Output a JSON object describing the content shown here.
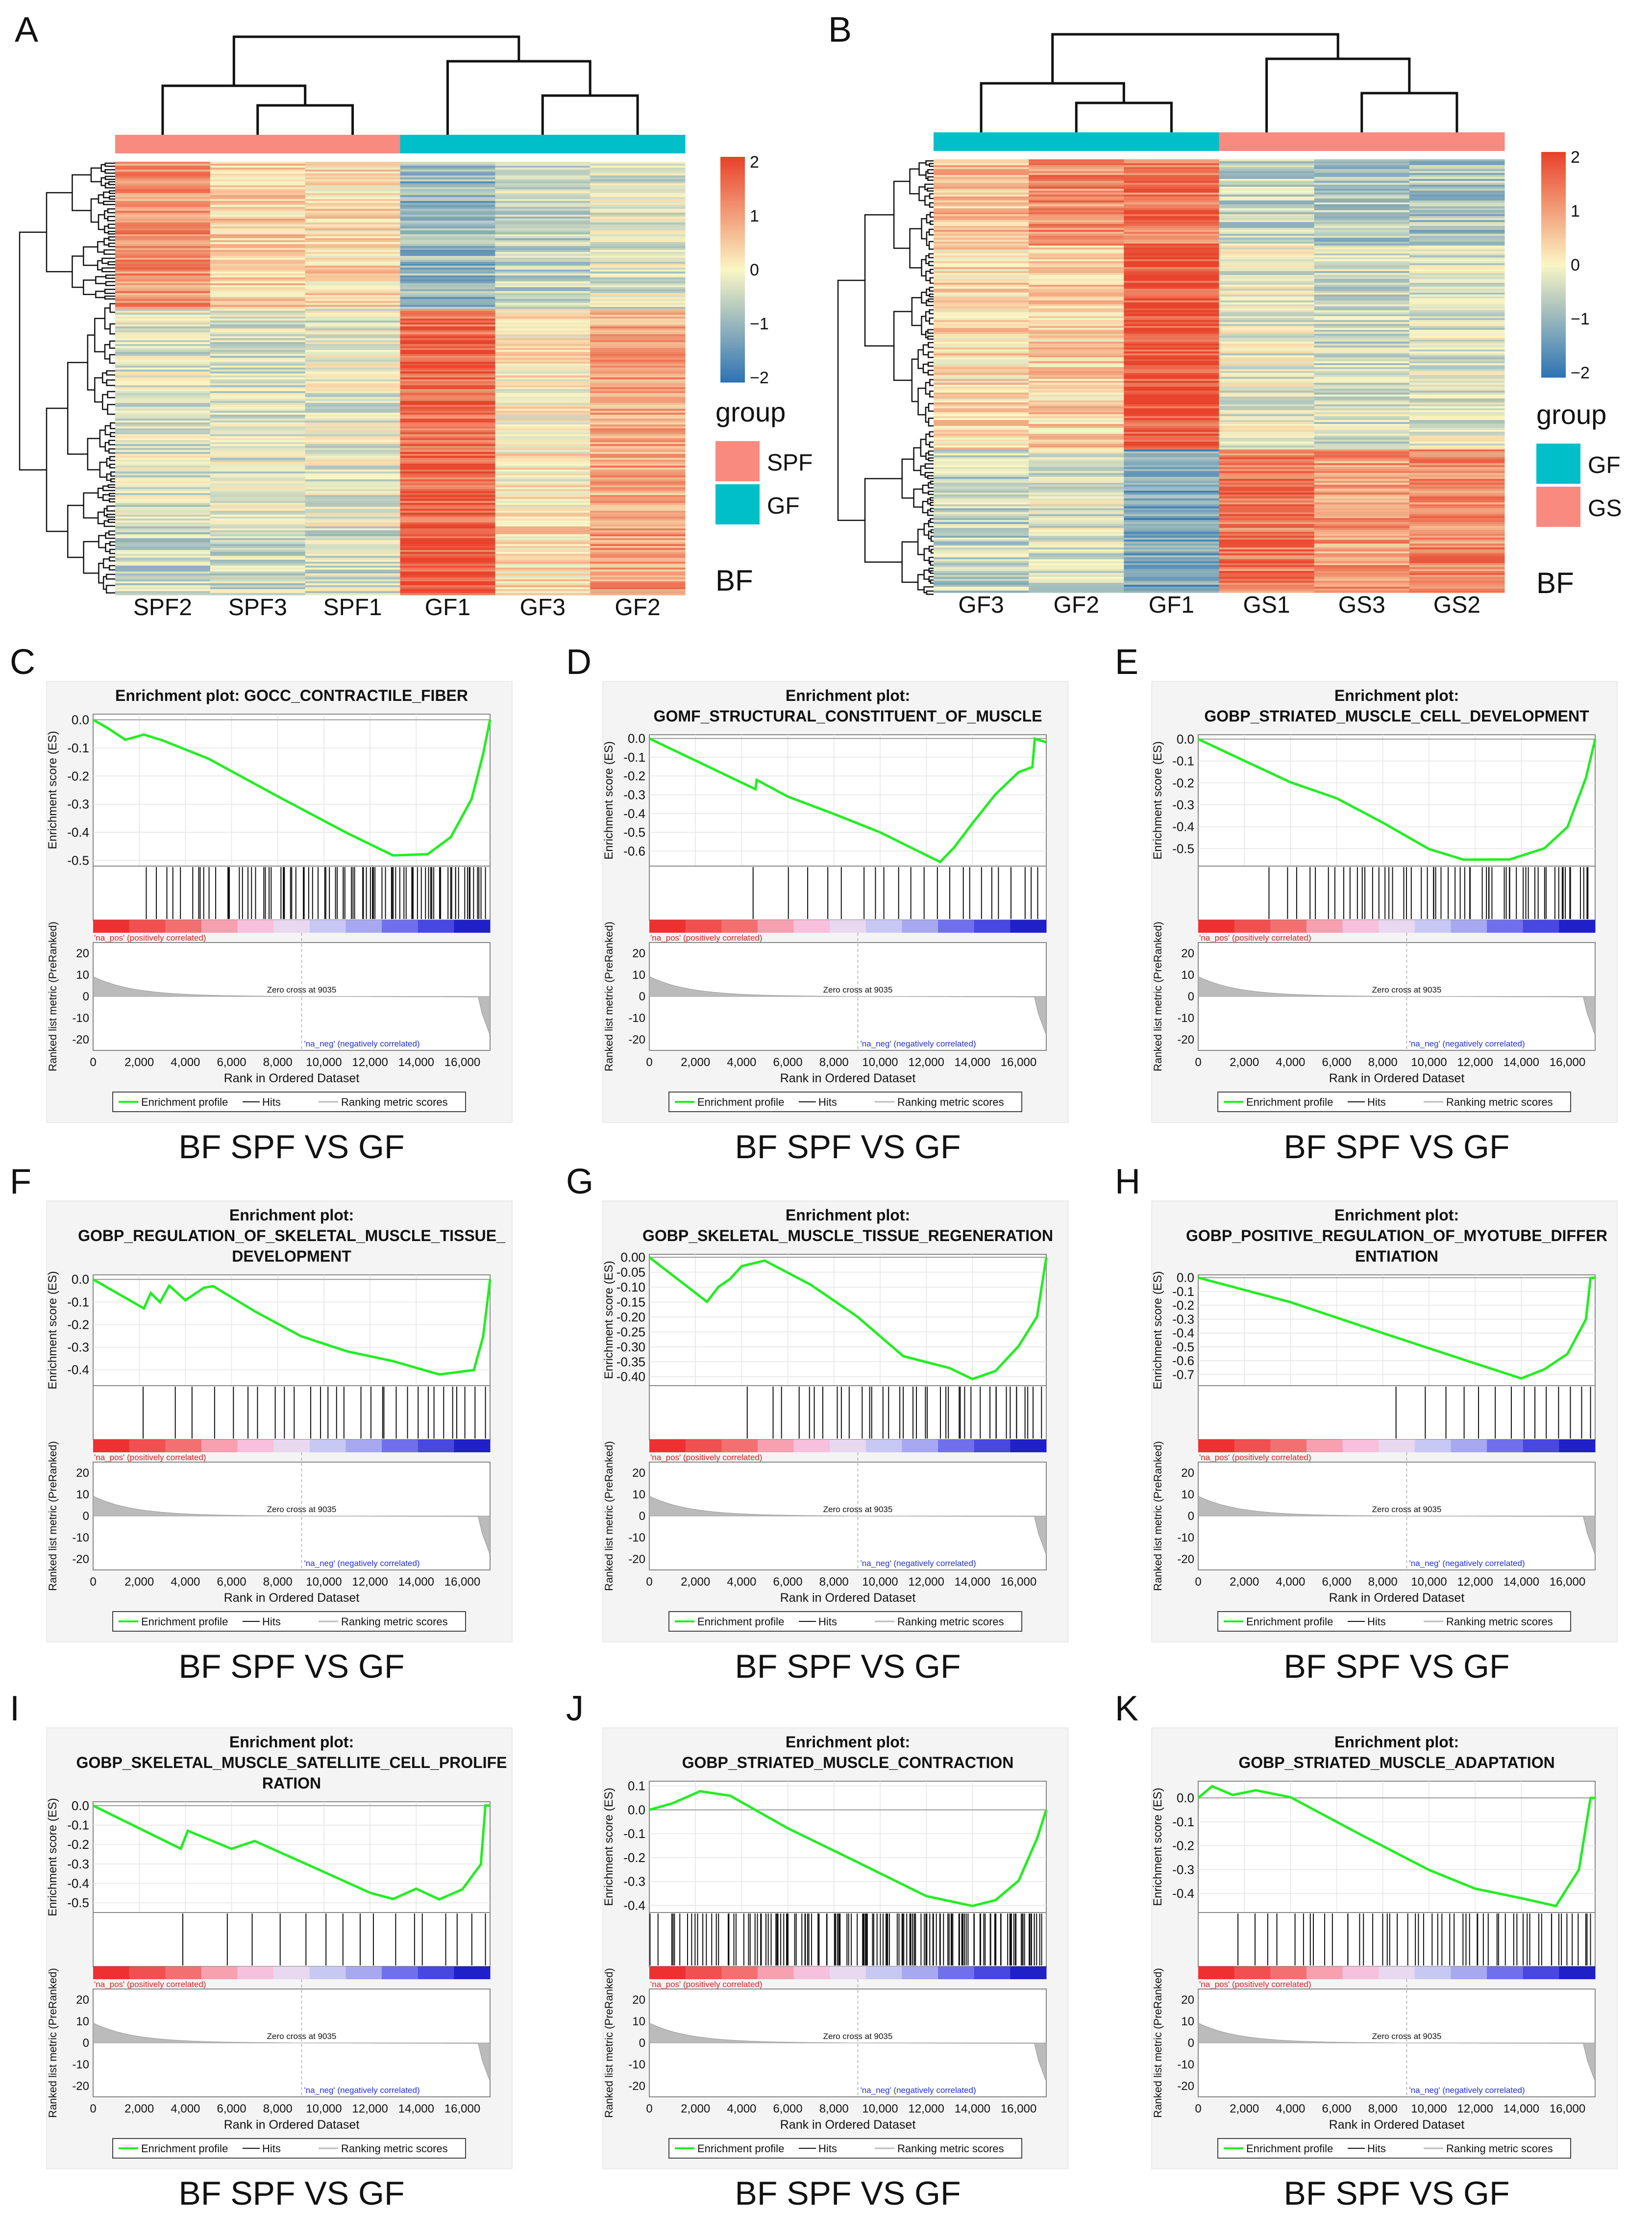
{
  "colors": {
    "heat_low": "#2f74b4",
    "heat_mid": "#fbf6c4",
    "heat_high": "#e8432c",
    "group_spf": "#f88a80",
    "group_gf": "#00bfc9",
    "group_gs": "#f88a80",
    "es_line": "#22ee22",
    "hit_line": "#111111"
  },
  "heatmaps": [
    {
      "panel": "A",
      "columns": [
        "SPF2",
        "SPF3",
        "SPF1",
        "GF1",
        "GF3",
        "GF2"
      ],
      "groups": [
        "SPF",
        "SPF",
        "SPF",
        "GF",
        "GF",
        "GF"
      ],
      "legend_title": "group",
      "legend_items": [
        {
          "name": "SPF",
          "color": "#f88a80"
        },
        {
          "name": "GF",
          "color": "#00bfc9"
        }
      ],
      "scale_ticks": [
        "2",
        "1",
        "0",
        "−1",
        "−2"
      ],
      "tissue": "BF",
      "blocks": [
        {
          "frac": 0.34,
          "values": [
            1.1,
            0.4,
            0.3,
            -1.0,
            -0.5,
            -0.3
          ]
        },
        {
          "frac": 0.5,
          "values": [
            -0.3,
            -0.3,
            -0.2,
            1.6,
            0.1,
            0.9
          ]
        },
        {
          "frac": 0.16,
          "values": [
            -0.5,
            -0.4,
            -0.4,
            1.8,
            0.3,
            1.0
          ]
        }
      ]
    },
    {
      "panel": "B",
      "columns": [
        "GF3",
        "GF2",
        "GF1",
        "GS1",
        "GS3",
        "GS2"
      ],
      "groups": [
        "GF",
        "GF",
        "GF",
        "GS",
        "GS",
        "GS"
      ],
      "legend_title": "group",
      "legend_items": [
        {
          "name": "GF",
          "color": "#00bfc9"
        },
        {
          "name": "GS",
          "color": "#f88a80"
        }
      ],
      "scale_ticks": [
        "2",
        "1",
        "0",
        "−1",
        "−2"
      ],
      "tissue": "BF",
      "blocks": [
        {
          "frac": 0.2,
          "values": [
            0.6,
            1.2,
            1.4,
            -0.5,
            -0.7,
            -0.8
          ]
        },
        {
          "frac": 0.47,
          "values": [
            0.3,
            0.4,
            1.8,
            -0.2,
            -0.4,
            -0.3
          ]
        },
        {
          "frac": 0.33,
          "values": [
            -0.6,
            -0.3,
            -1.3,
            1.4,
            1.0,
            1.2
          ]
        }
      ]
    }
  ],
  "gsea_common": {
    "title_prefix": "Enrichment plot:",
    "es_ylabel": "Enrichment score (ES)",
    "rank_ylabel": "Ranked list metric (PreRanked)",
    "xlabel": "Rank in Ordered Dataset",
    "x_ticks": [
      "0",
      "2,000",
      "4,000",
      "6,000",
      "8,000",
      "10,000",
      "12,000",
      "14,000",
      "16,000"
    ],
    "rank_ticks": [
      "20",
      "10",
      "0",
      "-10",
      "-20"
    ],
    "pos_label": "'na_pos' (positively correlated)",
    "neg_label": "'na_neg' (negatively correlated)",
    "zero_cross": "Zero cross at 9035",
    "legend": [
      "Enrichment profile",
      "Hits",
      "Ranking metric scores"
    ],
    "caption": "BF SPF VS GF"
  },
  "chart_data": [
    {
      "type": "line",
      "panel": "C",
      "title_lines": [
        "Enrichment plot: GOCC_CONTRACTILE_FIBER"
      ],
      "y_ticks": [
        "0.0",
        "-0.1",
        "-0.2",
        "-0.3",
        "-0.4",
        "-0.5"
      ],
      "ylim": [
        -0.52,
        0.02
      ],
      "xlim": [
        0,
        17200
      ],
      "es": [
        [
          0,
          0
        ],
        [
          600,
          -0.03
        ],
        [
          1400,
          -0.07
        ],
        [
          2200,
          -0.05
        ],
        [
          3000,
          -0.07
        ],
        [
          5000,
          -0.14
        ],
        [
          8000,
          -0.27
        ],
        [
          11000,
          -0.4
        ],
        [
          13000,
          -0.48
        ],
        [
          14500,
          -0.48
        ],
        [
          15500,
          -0.42
        ],
        [
          16400,
          -0.28
        ],
        [
          16900,
          -0.12
        ],
        [
          17200,
          0
        ]
      ],
      "hits": {
        "start": 2200,
        "end": 17000,
        "count": 90
      }
    },
    {
      "type": "line",
      "panel": "D",
      "title_lines": [
        "Enrichment plot:",
        "GOMF_STRUCTURAL_CONSTITUENT_OF_MUSCLE"
      ],
      "y_ticks": [
        "0.0",
        "-0.1",
        "-0.2",
        "-0.3",
        "-0.4",
        "-0.5",
        "-0.6"
      ],
      "ylim": [
        -0.68,
        0.02
      ],
      "xlim": [
        0,
        17200
      ],
      "es": [
        [
          0,
          0
        ],
        [
          4600,
          -0.27
        ],
        [
          4650,
          -0.22
        ],
        [
          6000,
          -0.31
        ],
        [
          8000,
          -0.4
        ],
        [
          10000,
          -0.5
        ],
        [
          12600,
          -0.66
        ],
        [
          13200,
          -0.58
        ],
        [
          14000,
          -0.45
        ],
        [
          15000,
          -0.3
        ],
        [
          16000,
          -0.18
        ],
        [
          16600,
          -0.15
        ],
        [
          16700,
          0
        ],
        [
          17200,
          -0.02
        ]
      ],
      "hits": {
        "start": 4600,
        "end": 17000,
        "count": 22
      }
    },
    {
      "type": "line",
      "panel": "E",
      "title_lines": [
        "Enrichment plot:",
        "GOBP_STRIATED_MUSCLE_CELL_DEVELOPMENT"
      ],
      "y_ticks": [
        "0.0",
        "-0.1",
        "-0.2",
        "-0.3",
        "-0.4",
        "-0.5"
      ],
      "ylim": [
        -0.58,
        0.02
      ],
      "xlim": [
        0,
        17200
      ],
      "es": [
        [
          0,
          0
        ],
        [
          2000,
          -0.1
        ],
        [
          4000,
          -0.2
        ],
        [
          6000,
          -0.27
        ],
        [
          8000,
          -0.38
        ],
        [
          10000,
          -0.5
        ],
        [
          11500,
          -0.55
        ],
        [
          13500,
          -0.55
        ],
        [
          15000,
          -0.5
        ],
        [
          16000,
          -0.4
        ],
        [
          16800,
          -0.18
        ],
        [
          17200,
          0
        ]
      ],
      "hits": {
        "start": 3000,
        "end": 17000,
        "count": 60
      }
    },
    {
      "type": "line",
      "panel": "F",
      "title_lines": [
        "Enrichment plot:",
        "GOBP_REGULATION_OF_SKELETAL_MUSCLE_TISSUE_",
        "DEVELOPMENT"
      ],
      "y_ticks": [
        "0.0",
        "-0.1",
        "-0.2",
        "-0.3",
        "-0.4"
      ],
      "ylim": [
        -0.47,
        0.02
      ],
      "xlim": [
        0,
        17200
      ],
      "es": [
        [
          0,
          0
        ],
        [
          2200,
          -0.13
        ],
        [
          2500,
          -0.06
        ],
        [
          2900,
          -0.1
        ],
        [
          3300,
          -0.03
        ],
        [
          4000,
          -0.09
        ],
        [
          4800,
          -0.04
        ],
        [
          5200,
          -0.03
        ],
        [
          7000,
          -0.14
        ],
        [
          9000,
          -0.25
        ],
        [
          11000,
          -0.32
        ],
        [
          13000,
          -0.36
        ],
        [
          15000,
          -0.42
        ],
        [
          16500,
          -0.4
        ],
        [
          16900,
          -0.25
        ],
        [
          17200,
          0
        ]
      ],
      "hits": {
        "start": 2200,
        "end": 17000,
        "count": 30
      }
    },
    {
      "type": "line",
      "panel": "G",
      "title_lines": [
        "Enrichment plot:",
        "GOBP_SKELETAL_MUSCLE_TISSUE_REGENERATION"
      ],
      "y_ticks": [
        "0.00",
        "-0.05",
        "-0.10",
        "-0.15",
        "-0.20",
        "-0.25",
        "-0.30",
        "-0.35",
        "-0.40"
      ],
      "ylim": [
        -0.43,
        0.01
      ],
      "xlim": [
        0,
        17200
      ],
      "es": [
        [
          0,
          0
        ],
        [
          2500,
          -0.15
        ],
        [
          3000,
          -0.1
        ],
        [
          3500,
          -0.07
        ],
        [
          4000,
          -0.03
        ],
        [
          5000,
          -0.01
        ],
        [
          7000,
          -0.09
        ],
        [
          9000,
          -0.2
        ],
        [
          11000,
          -0.33
        ],
        [
          13000,
          -0.37
        ],
        [
          14000,
          -0.41
        ],
        [
          15000,
          -0.38
        ],
        [
          16000,
          -0.3
        ],
        [
          16800,
          -0.2
        ],
        [
          17200,
          0
        ]
      ],
      "hits": {
        "start": 4200,
        "end": 17000,
        "count": 40
      }
    },
    {
      "type": "line",
      "panel": "H",
      "title_lines": [
        "Enrichment plot:",
        "GOBP_POSITIVE_REGULATION_OF_MYOTUBE_DIFFER",
        "ENTIATION"
      ],
      "y_ticks": [
        "0.0",
        "-0.1",
        "-0.2",
        "-0.3",
        "-0.4",
        "-0.5",
        "-0.6",
        "-0.7"
      ],
      "ylim": [
        -0.78,
        0.02
      ],
      "xlim": [
        0,
        17200
      ],
      "es": [
        [
          0,
          0
        ],
        [
          4000,
          -0.18
        ],
        [
          8000,
          -0.4
        ],
        [
          12000,
          -0.62
        ],
        [
          14000,
          -0.73
        ],
        [
          15000,
          -0.66
        ],
        [
          16000,
          -0.55
        ],
        [
          16800,
          -0.3
        ],
        [
          17000,
          0
        ],
        [
          17200,
          0
        ]
      ],
      "hits": {
        "start": 8500,
        "end": 17000,
        "count": 14
      }
    },
    {
      "type": "line",
      "panel": "I",
      "title_lines": [
        "Enrichment plot:",
        "GOBP_SKELETAL_MUSCLE_SATELLITE_CELL_PROLIFE",
        "RATION"
      ],
      "y_ticks": [
        "0.0",
        "-0.1",
        "-0.2",
        "-0.3",
        "-0.4",
        "-0.5"
      ],
      "ylim": [
        -0.55,
        0.02
      ],
      "xlim": [
        0,
        17200
      ],
      "es": [
        [
          0,
          0
        ],
        [
          3800,
          -0.22
        ],
        [
          4100,
          -0.13
        ],
        [
          6000,
          -0.22
        ],
        [
          7000,
          -0.18
        ],
        [
          10000,
          -0.34
        ],
        [
          12000,
          -0.45
        ],
        [
          13000,
          -0.48
        ],
        [
          14000,
          -0.43
        ],
        [
          15000,
          -0.48
        ],
        [
          16000,
          -0.43
        ],
        [
          16800,
          -0.3
        ],
        [
          17000,
          0
        ],
        [
          17200,
          0
        ]
      ],
      "hits": {
        "start": 3800,
        "end": 17000,
        "count": 16
      }
    },
    {
      "type": "line",
      "panel": "J",
      "title_lines": [
        "Enrichment plot:",
        "GOBP_STRIATED_MUSCLE_CONTRACTION"
      ],
      "y_ticks": [
        "0.1",
        "0.0",
        "-0.1",
        "-0.2",
        "-0.3",
        "-0.4"
      ],
      "ylim": [
        -0.43,
        0.12
      ],
      "xlim": [
        0,
        17200
      ],
      "es": [
        [
          0,
          0
        ],
        [
          1000,
          0.03
        ],
        [
          2200,
          0.08
        ],
        [
          3500,
          0.06
        ],
        [
          6000,
          -0.08
        ],
        [
          9000,
          -0.22
        ],
        [
          12000,
          -0.36
        ],
        [
          14000,
          -0.4
        ],
        [
          15000,
          -0.38
        ],
        [
          16000,
          -0.3
        ],
        [
          16800,
          -0.12
        ],
        [
          17200,
          0
        ]
      ],
      "hits": {
        "start": 0,
        "end": 17000,
        "count": 160
      }
    },
    {
      "type": "line",
      "panel": "K",
      "title_lines": [
        "Enrichment plot:",
        "GOBP_STRIATED_MUSCLE_ADAPTATION"
      ],
      "y_ticks": [
        "0.0",
        "-0.1",
        "-0.2",
        "-0.3",
        "-0.4"
      ],
      "ylim": [
        -0.48,
        0.07
      ],
      "xlim": [
        0,
        17200
      ],
      "es": [
        [
          0,
          0
        ],
        [
          600,
          0.05
        ],
        [
          1500,
          0.01
        ],
        [
          2500,
          0.03
        ],
        [
          4000,
          0.0
        ],
        [
          7000,
          -0.15
        ],
        [
          10000,
          -0.3
        ],
        [
          12000,
          -0.38
        ],
        [
          14000,
          -0.42
        ],
        [
          15500,
          -0.45
        ],
        [
          16500,
          -0.3
        ],
        [
          17000,
          0
        ],
        [
          17200,
          0
        ]
      ],
      "hits": {
        "start": 1500,
        "end": 17000,
        "count": 55
      }
    }
  ]
}
